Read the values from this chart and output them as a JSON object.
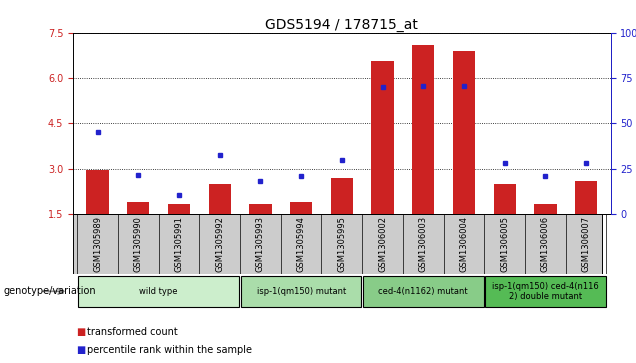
{
  "title": "GDS5194 / 178715_at",
  "samples": [
    "GSM1305989",
    "GSM1305990",
    "GSM1305991",
    "GSM1305992",
    "GSM1305993",
    "GSM1305994",
    "GSM1305995",
    "GSM1306002",
    "GSM1306003",
    "GSM1306004",
    "GSM1306005",
    "GSM1306006",
    "GSM1306007"
  ],
  "bar_values": [
    2.95,
    1.9,
    1.85,
    2.5,
    1.85,
    1.9,
    2.7,
    6.55,
    7.1,
    6.9,
    2.5,
    1.85,
    2.6
  ],
  "scatter_values": [
    4.2,
    2.8,
    2.15,
    3.45,
    2.6,
    2.75,
    3.3,
    5.7,
    5.75,
    5.75,
    3.2,
    2.75,
    3.2
  ],
  "bar_bottom": 1.5,
  "ylim": [
    1.5,
    7.5
  ],
  "yticks_left": [
    1.5,
    3.0,
    4.5,
    6.0,
    7.5
  ],
  "yticks_right": [
    0,
    25,
    50,
    75,
    100
  ],
  "bar_color": "#cc2222",
  "scatter_color": "#2222cc",
  "groups": [
    {
      "label": "wild type",
      "start": 0,
      "end": 3,
      "color": "#cceecc"
    },
    {
      "label": "isp-1(qm150) mutant",
      "start": 4,
      "end": 6,
      "color": "#aaddaa"
    },
    {
      "label": "ced-4(n1162) mutant",
      "start": 7,
      "end": 9,
      "color": "#88cc88"
    },
    {
      "label": "isp-1(qm150) ced-4(n116\n2) double mutant",
      "start": 10,
      "end": 12,
      "color": "#55bb55"
    }
  ],
  "xlabel_genotype": "genotype/variation",
  "legend_bar": "transformed count",
  "legend_scatter": "percentile rank within the sample",
  "title_fontsize": 10,
  "tick_fontsize": 7,
  "label_fontsize": 6,
  "group_fontsize": 6
}
